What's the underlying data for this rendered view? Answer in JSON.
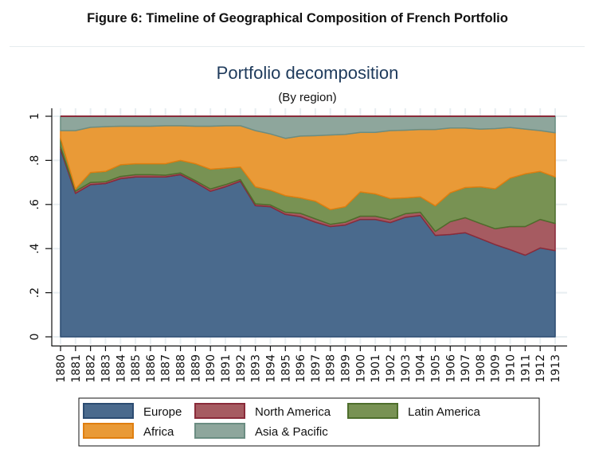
{
  "figure_title": "Figure 6: Timeline of Geographical Composition of French Portfolio",
  "chart_data": {
    "type": "area",
    "stacked": true,
    "title": "Portfolio decomposition",
    "subtitle": "(By region)",
    "xlabel": "",
    "ylabel": "",
    "ylim": [
      0,
      1
    ],
    "yticks": [
      0,
      0.2,
      0.4,
      0.6,
      0.8,
      1
    ],
    "ytick_labels": [
      "0",
      ".2",
      ".4",
      ".6",
      ".8",
      "1"
    ],
    "x": [
      1880,
      1881,
      1882,
      1883,
      1884,
      1885,
      1886,
      1887,
      1888,
      1889,
      1890,
      1891,
      1892,
      1893,
      1894,
      1895,
      1896,
      1897,
      1898,
      1899,
      1900,
      1901,
      1902,
      1903,
      1904,
      1905,
      1906,
      1907,
      1908,
      1909,
      1910,
      1911,
      1912,
      1913
    ],
    "xtick_labels": [
      "1880",
      "1881",
      "1882",
      "1883",
      "1884",
      "1885",
      "1886",
      "1887",
      "1888",
      "1889",
      "1890",
      "1891",
      "1892",
      "1893",
      "1894",
      "1895",
      "1896",
      "1897",
      "1898",
      "1899",
      "1900",
      "1901",
      "1902",
      "1903",
      "1904",
      "1905",
      "1906",
      "1907",
      "1908",
      "1909",
      "1910",
      "1911",
      "1912",
      "1913"
    ],
    "grid": true,
    "legend_position": "bottom",
    "cumulative_tops": {
      "Europe": [
        0.85,
        0.65,
        0.69,
        0.695,
        0.717,
        0.725,
        0.725,
        0.725,
        0.735,
        0.7,
        0.66,
        0.68,
        0.705,
        0.595,
        0.59,
        0.555,
        0.545,
        0.52,
        0.5,
        0.507,
        0.532,
        0.532,
        0.518,
        0.542,
        0.55,
        0.46,
        0.464,
        0.472,
        0.445,
        0.418,
        0.395,
        0.37,
        0.403,
        0.391
      ],
      "North America": [
        0.86,
        0.66,
        0.7,
        0.703,
        0.727,
        0.735,
        0.735,
        0.733,
        0.743,
        0.708,
        0.67,
        0.69,
        0.713,
        0.603,
        0.598,
        0.565,
        0.56,
        0.535,
        0.51,
        0.52,
        0.547,
        0.547,
        0.532,
        0.558,
        0.565,
        0.478,
        0.522,
        0.54,
        0.514,
        0.49,
        0.5,
        0.5,
        0.532,
        0.514
      ],
      "Latin America": [
        0.9,
        0.67,
        0.745,
        0.75,
        0.78,
        0.785,
        0.785,
        0.785,
        0.8,
        0.785,
        0.76,
        0.765,
        0.77,
        0.68,
        0.665,
        0.64,
        0.63,
        0.615,
        0.577,
        0.59,
        0.657,
        0.648,
        0.627,
        0.63,
        0.635,
        0.594,
        0.653,
        0.677,
        0.68,
        0.671,
        0.72,
        0.739,
        0.75,
        0.725
      ],
      "Africa": [
        0.935,
        0.935,
        0.95,
        0.953,
        0.955,
        0.955,
        0.955,
        0.957,
        0.957,
        0.955,
        0.955,
        0.957,
        0.957,
        0.935,
        0.92,
        0.9,
        0.91,
        0.912,
        0.915,
        0.918,
        0.927,
        0.927,
        0.935,
        0.937,
        0.94,
        0.94,
        0.947,
        0.947,
        0.942,
        0.944,
        0.949,
        0.942,
        0.935,
        0.925
      ],
      "Asia & Pacific": [
        1,
        1,
        1,
        1,
        1,
        1,
        1,
        1,
        1,
        1,
        1,
        1,
        1,
        1,
        1,
        1,
        1,
        1,
        1,
        1,
        1,
        1,
        1,
        1,
        1,
        1,
        1,
        1,
        1,
        1,
        1,
        1,
        1,
        1
      ]
    },
    "series": [
      {
        "name": "Europe",
        "color": "#4a6a8d",
        "stroke": "#2c4c72",
        "values": [
          0.85,
          0.65,
          0.69,
          0.695,
          0.717,
          0.725,
          0.725,
          0.725,
          0.735,
          0.7,
          0.66,
          0.68,
          0.705,
          0.595,
          0.59,
          0.555,
          0.545,
          0.52,
          0.5,
          0.507,
          0.532,
          0.532,
          0.518,
          0.542,
          0.55,
          0.46,
          0.464,
          0.472,
          0.445,
          0.418,
          0.395,
          0.37,
          0.403,
          0.391
        ]
      },
      {
        "name": "North America",
        "color": "#a65b61",
        "stroke": "#8a2b3a",
        "values": [
          0.01,
          0.01,
          0.01,
          0.008,
          0.01,
          0.01,
          0.01,
          0.008,
          0.008,
          0.008,
          0.01,
          0.01,
          0.008,
          0.008,
          0.008,
          0.01,
          0.015,
          0.015,
          0.01,
          0.013,
          0.015,
          0.015,
          0.014,
          0.016,
          0.015,
          0.018,
          0.058,
          0.068,
          0.069,
          0.072,
          0.105,
          0.13,
          0.129,
          0.123
        ]
      },
      {
        "name": "Latin America",
        "color": "#789253",
        "stroke": "#4e6e2c",
        "values": [
          0.04,
          0.01,
          0.045,
          0.047,
          0.053,
          0.05,
          0.05,
          0.052,
          0.057,
          0.077,
          0.09,
          0.075,
          0.057,
          0.077,
          0.067,
          0.075,
          0.07,
          0.08,
          0.067,
          0.07,
          0.11,
          0.101,
          0.095,
          0.072,
          0.07,
          0.116,
          0.131,
          0.137,
          0.166,
          0.181,
          0.22,
          0.239,
          0.218,
          0.211
        ]
      },
      {
        "name": "Africa",
        "color": "#e99a37",
        "stroke": "#e07f10",
        "values": [
          0.035,
          0.265,
          0.205,
          0.203,
          0.175,
          0.17,
          0.17,
          0.172,
          0.157,
          0.17,
          0.195,
          0.192,
          0.187,
          0.255,
          0.255,
          0.26,
          0.28,
          0.297,
          0.338,
          0.328,
          0.27,
          0.279,
          0.308,
          0.307,
          0.305,
          0.346,
          0.294,
          0.27,
          0.262,
          0.273,
          0.229,
          0.203,
          0.185,
          0.2
        ]
      },
      {
        "name": "Asia & Pacific",
        "color": "#8ea69c",
        "stroke": "#6b8d82",
        "values": [
          0.065,
          0.065,
          0.05,
          0.047,
          0.045,
          0.045,
          0.045,
          0.043,
          0.043,
          0.045,
          0.045,
          0.043,
          0.043,
          0.065,
          0.08,
          0.1,
          0.09,
          0.088,
          0.085,
          0.082,
          0.073,
          0.073,
          0.065,
          0.063,
          0.06,
          0.06,
          0.053,
          0.053,
          0.058,
          0.056,
          0.051,
          0.058,
          0.065,
          0.075
        ]
      }
    ],
    "legend": [
      "Europe",
      "North America",
      "Latin America",
      "Africa",
      "Asia & Pacific"
    ]
  }
}
